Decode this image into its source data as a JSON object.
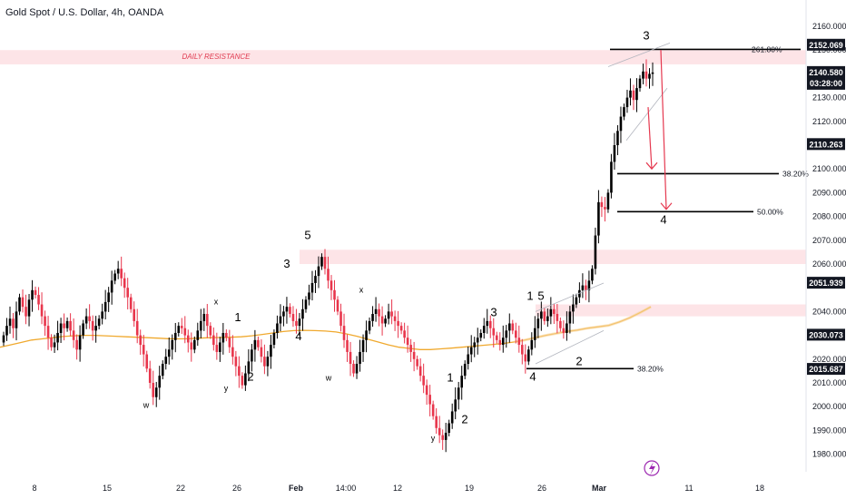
{
  "header": {
    "title": "Gold Spot / U.S. Dollar, 4h, OANDA"
  },
  "colors": {
    "bull": "#000000",
    "bear": "#e8364c",
    "ma": "#f0a92e",
    "zone": "#fde4e7",
    "arrow": "#e53950",
    "channel": "#b2b5be",
    "badge": "#131722",
    "bolt": "#9c27b0"
  },
  "chart_data": {
    "type": "candlestick",
    "title": "Gold Spot / U.S. Dollar, 4h, OANDA",
    "ylim": [
      1975,
      2168
    ],
    "y_ticks": [
      "2160.000",
      "2150.000",
      "2130.000",
      "2120.000",
      "2100.000",
      "2090.000",
      "2080.000",
      "2070.000",
      "2060.000",
      "2040.000",
      "2020.000",
      "2010.000",
      "2000.000",
      "1990.000",
      "1980.000"
    ],
    "x_ticks": [
      "8",
      "15",
      "22",
      "26",
      "Feb",
      "14:00",
      "12",
      "19",
      "26",
      "Mar",
      "11",
      "18"
    ],
    "last_price": "2140.580",
    "countdown": "03:28:00",
    "price_badges": [
      "2152.069",
      "2110.263",
      "2051.939",
      "2030.073",
      "2015.687"
    ],
    "zones": [
      {
        "label": "DAILY RESISTANCE",
        "from": 2144,
        "to": 2150
      },
      {
        "label": "",
        "from": 2060,
        "to": 2066
      },
      {
        "label": "",
        "from": 2038,
        "to": 2043
      }
    ],
    "fib_levels": [
      {
        "label": "261.80%",
        "price": 2150.3
      },
      {
        "label": "38.20%",
        "price": 2098.0
      },
      {
        "label": "50.00%",
        "price": 2082.0
      },
      {
        "label": "38.20%",
        "price": 2016.0
      }
    ],
    "wave_labels": [
      {
        "text": "w",
        "x": 161,
        "price": 1999.5,
        "small": true
      },
      {
        "text": "x",
        "x": 238,
        "price": 2043,
        "small": true
      },
      {
        "text": "y",
        "x": 249,
        "price": 2006.5,
        "small": true
      },
      {
        "text": "1",
        "x": 262,
        "price": 2036,
        "small": false
      },
      {
        "text": "2",
        "x": 276,
        "price": 2011,
        "small": false
      },
      {
        "text": "3",
        "x": 316,
        "price": 2058.5,
        "small": false
      },
      {
        "text": "4",
        "x": 329,
        "price": 2028,
        "small": false
      },
      {
        "text": "5",
        "x": 339,
        "price": 2070.5,
        "small": false
      },
      {
        "text": "x",
        "x": 398,
        "price": 2048,
        "small": true
      },
      {
        "text": "w",
        "x": 362,
        "price": 2011,
        "small": true
      },
      {
        "text": "y",
        "x": 477,
        "price": 1985.5,
        "small": true
      },
      {
        "text": "1",
        "x": 496,
        "price": 2010.5,
        "small": false
      },
      {
        "text": "2",
        "x": 512,
        "price": 1993,
        "small": false
      },
      {
        "text": "3",
        "x": 544,
        "price": 2038,
        "small": false
      },
      {
        "text": "1",
        "x": 584,
        "price": 2045,
        "small": false
      },
      {
        "text": "5",
        "x": 596,
        "price": 2045,
        "small": false
      },
      {
        "text": "4",
        "x": 587,
        "price": 2011,
        "small": false
      },
      {
        "text": "2",
        "x": 638,
        "price": 2017.5,
        "small": false
      },
      {
        "text": "3",
        "x": 712,
        "price": 2154.5,
        "small": false
      },
      {
        "text": "4",
        "x": 731,
        "price": 2077,
        "small": false
      }
    ],
    "series": [
      {
        "name": "",
        "type": "candles",
        "close": [
          2030,
          2034,
          2037,
          2033,
          2040,
          2046,
          2042,
          2038,
          2045,
          2049,
          2047,
          2043,
          2038,
          2034,
          2029,
          2025,
          2027,
          2031,
          2035,
          2033,
          2036,
          2032,
          2028,
          2024,
          2030,
          2035,
          2038,
          2036,
          2032,
          2034,
          2037,
          2040,
          2044,
          2048,
          2053,
          2056,
          2058,
          2054,
          2050,
          2046,
          2041,
          2036,
          2030,
          2026,
          2022,
          2016,
          2010,
          2004,
          2008,
          2013,
          2018,
          2021,
          2024,
          2028,
          2031,
          2034,
          2033,
          2030,
          2027,
          2024,
          2028,
          2032,
          2036,
          2039,
          2034,
          2030,
          2026,
          2023,
          2027,
          2031,
          2029,
          2025,
          2021,
          2017,
          2013,
          2009,
          2014,
          2019,
          2024,
          2028,
          2025,
          2021,
          2017,
          2021,
          2026,
          2031,
          2035,
          2038,
          2040,
          2042,
          2039,
          2036,
          2034,
          2037,
          2041,
          2045,
          2048,
          2052,
          2055,
          2059,
          2063,
          2058,
          2053,
          2049,
          2045,
          2040,
          2034,
          2028,
          2023,
          2018,
          2014,
          2018,
          2023,
          2028,
          2032,
          2036,
          2039,
          2041,
          2038,
          2035,
          2037,
          2040,
          2038,
          2036,
          2034,
          2032,
          2029,
          2026,
          2023,
          2020,
          2017,
          2013,
          2009,
          2005,
          2001,
          1996,
          1991,
          1988,
          1986,
          1989,
          1993,
          1998,
          2003,
          2008,
          2013,
          2018,
          2022,
          2025,
          2027,
          2029,
          2031,
          2034,
          2036,
          2033,
          2030,
          2028,
          2026,
          2029,
          2032,
          2035,
          2032,
          2029,
          2026,
          2022,
          2019,
          2024,
          2028,
          2033,
          2037,
          2040,
          2036,
          2038,
          2041,
          2039,
          2036,
          2033,
          2031,
          2035,
          2040,
          2043,
          2046,
          2049,
          2051,
          2049,
          2053,
          2058,
          2072,
          2086,
          2084,
          2083,
          2090,
          2103,
          2110,
          2116,
          2122,
          2126,
          2130,
          2133,
          2129,
          2134,
          2138,
          2141,
          2138,
          2140,
          2140.58
        ]
      },
      {
        "name": "",
        "type": "moving-average",
        "close": [
          2025,
          2026,
          2027,
          2028,
          2028.5,
          2029,
          2029.5,
          2029.8,
          2030,
          2030,
          2029.8,
          2029.6,
          2029.4,
          2029.2,
          2029,
          2028.8,
          2028.6,
          2028.5,
          2028.6,
          2028.8,
          2029,
          2029.1,
          2029.2,
          2029.4,
          2029.8,
          2030.4,
          2031,
          2031.6,
          2032,
          2032.1,
          2032,
          2031.8,
          2031.4,
          2030.6,
          2029.6,
          2028.4,
          2027.2,
          2026,
          2025,
          2024.5,
          2024,
          2024,
          2024.3,
          2024.6,
          2025,
          2025.4,
          2025.8,
          2026.2,
          2026.6,
          2027.2,
          2028,
          2029,
          2030,
          2030.8,
          2031.6,
          2032.2,
          2033,
          2033.6,
          2034.2,
          2035.6,
          2037.4,
          2039.6,
          2042
        ]
      }
    ]
  }
}
